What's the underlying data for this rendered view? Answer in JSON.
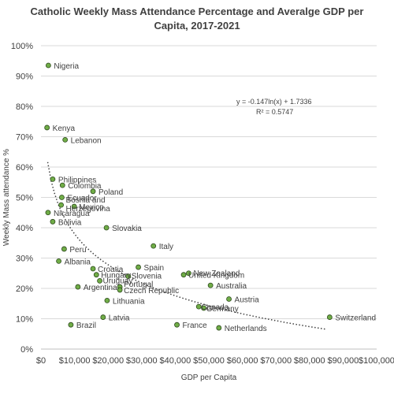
{
  "chart_data": {
    "type": "scatter",
    "title": "Catholic Weekly Mass Attendance Percentage and Averalge GDP per Capita, 2017-2021",
    "title_lines": [
      "Catholic Weekly Mass Attendance Percentage and Averalge GDP per",
      "Capita, 2017-2021"
    ],
    "xlabel": "GDP per Capita",
    "ylabel": "Weekly Mass attendance %",
    "xlim": [
      0,
      100000
    ],
    "ylim": [
      0,
      1
    ],
    "x_ticks": [
      0,
      10000,
      20000,
      30000,
      40000,
      50000,
      60000,
      70000,
      80000,
      90000,
      100000
    ],
    "x_tick_labels": [
      "$0",
      "$10,000",
      "$20,000",
      "$30,000",
      "$40,000",
      "$50,000",
      "$60,000",
      "$70,000",
      "$80,000",
      "$90,000",
      "$100,000"
    ],
    "y_ticks": [
      0,
      0.1,
      0.2,
      0.3,
      0.4,
      0.5,
      0.6,
      0.7,
      0.8,
      0.9,
      1.0
    ],
    "y_tick_labels": [
      "0%",
      "10%",
      "20%",
      "30%",
      "40%",
      "50%",
      "60%",
      "70%",
      "80%",
      "90%",
      "100%"
    ],
    "grid": "horizontal",
    "marker_color": "#70AD47",
    "marker_edge": "#2E4A1E",
    "trendline": {
      "type": "logarithmic",
      "a": -0.147,
      "b": 1.7336,
      "x_range": [
        2000,
        85000
      ],
      "equation": "y = -0.147ln(x) + 1.7336",
      "r_squared": "R² = 0.5747"
    },
    "points": [
      {
        "name": "Nigeria",
        "x": 2200,
        "y": 0.935
      },
      {
        "name": "Kenya",
        "x": 1800,
        "y": 0.73
      },
      {
        "name": "Lebanon",
        "x": 7200,
        "y": 0.69
      },
      {
        "name": "Philippines",
        "x": 3500,
        "y": 0.56
      },
      {
        "name": "Colombia",
        "x": 6400,
        "y": 0.54
      },
      {
        "name": "Poland",
        "x": 15500,
        "y": 0.52
      },
      {
        "name": "Ecuador",
        "x": 6200,
        "y": 0.5
      },
      {
        "name": "Bosnia and Herzegovina",
        "x": 6000,
        "y": 0.475
      },
      {
        "name": "Mexico",
        "x": 9900,
        "y": 0.47
      },
      {
        "name": "Nicaragua",
        "x": 2100,
        "y": 0.45
      },
      {
        "name": "Bolivia",
        "x": 3500,
        "y": 0.42
      },
      {
        "name": "Slovakia",
        "x": 19500,
        "y": 0.4
      },
      {
        "name": "Italy",
        "x": 33500,
        "y": 0.34
      },
      {
        "name": "Peru",
        "x": 6900,
        "y": 0.33
      },
      {
        "name": "Albania",
        "x": 5300,
        "y": 0.29
      },
      {
        "name": "Spain",
        "x": 29000,
        "y": 0.27
      },
      {
        "name": "Croatia",
        "x": 15500,
        "y": 0.265
      },
      {
        "name": "New Zealand",
        "x": 44000,
        "y": 0.25
      },
      {
        "name": "United Kingdom",
        "x": 42500,
        "y": 0.245
      },
      {
        "name": "Hungary",
        "x": 16500,
        "y": 0.245
      },
      {
        "name": "Slovenia",
        "x": 26000,
        "y": 0.24
      },
      {
        "name": "Uruguay",
        "x": 17500,
        "y": 0.225
      },
      {
        "name": "Argentina",
        "x": 11000,
        "y": 0.205
      },
      {
        "name": "Portugal",
        "x": 23500,
        "y": 0.205
      },
      {
        "name": "Czech Republic",
        "x": 23500,
        "y": 0.195
      },
      {
        "name": "Australia",
        "x": 50500,
        "y": 0.21
      },
      {
        "name": "Lithuania",
        "x": 19700,
        "y": 0.16
      },
      {
        "name": "Austria",
        "x": 56000,
        "y": 0.165
      },
      {
        "name": "Canada",
        "x": 47000,
        "y": 0.14
      },
      {
        "name": "Germany",
        "x": 48500,
        "y": 0.135
      },
      {
        "name": "Latvia",
        "x": 18500,
        "y": 0.105
      },
      {
        "name": "Switzerland",
        "x": 86000,
        "y": 0.105
      },
      {
        "name": "Brazil",
        "x": 8900,
        "y": 0.08
      },
      {
        "name": "France",
        "x": 40500,
        "y": 0.08
      },
      {
        "name": "Netherlands",
        "x": 53000,
        "y": 0.07
      }
    ]
  }
}
